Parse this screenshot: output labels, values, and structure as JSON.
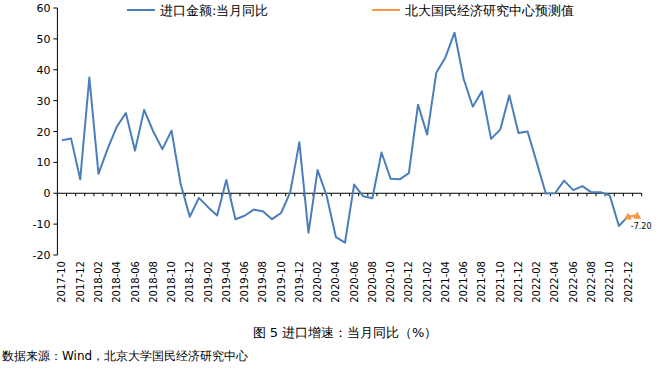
{
  "chart_data": {
    "type": "line",
    "title": "图 5 进口增速：当月同比（%）",
    "source": "数据来源：Wind，北京大学国民经济研究中心",
    "categories": [
      "2017-10",
      null,
      "2017-12",
      null,
      "2018-02",
      null,
      "2018-04",
      null,
      "2018-06",
      null,
      "2018-08",
      null,
      "2018-10",
      null,
      "2018-12",
      null,
      "2019-02",
      null,
      "2019-04",
      null,
      "2019-06",
      null,
      "2019-08",
      null,
      "2019-10",
      null,
      "2019-12",
      null,
      "2020-02",
      null,
      "2020-04",
      null,
      "2020-06",
      null,
      "2020-08",
      null,
      "2020-10",
      null,
      "2020-12",
      null,
      "2021-02",
      null,
      "2021-04",
      null,
      "2021-06",
      null,
      "2021-08",
      null,
      "2021-10",
      null,
      "2021-12",
      null,
      "2022-02",
      null,
      "2022-04",
      null,
      "2022-06",
      null,
      "2022-08",
      null,
      "2022-10",
      null,
      "2022-12",
      null
    ],
    "series": [
      {
        "name": "进口金额:当月同比",
        "color": "#4a7ebb",
        "values": [
          17.2,
          17.7,
          4.5,
          37.5,
          6.3,
          14.4,
          21.5,
          26.0,
          13.8,
          27.0,
          20.0,
          14.3,
          20.3,
          3.0,
          -7.6,
          -1.5,
          -4.5,
          -7.2,
          4.3,
          -8.4,
          -7.3,
          -5.3,
          -5.8,
          -8.4,
          -6.4,
          0.3,
          16.5,
          -12.8,
          7.5,
          -0.9,
          -14.2,
          -16.0,
          2.8,
          -1.0,
          -1.6,
          13.2,
          4.7,
          4.5,
          6.5,
          28.7,
          19.0,
          39.0,
          44.0,
          52.0,
          37.0,
          28.0,
          33.0,
          17.6,
          20.6,
          31.7,
          19.5,
          20.0,
          10.0,
          -0.1,
          0.0,
          4.1,
          1.0,
          2.3,
          0.3,
          0.3,
          -0.7,
          -10.6,
          -7.5,
          null
        ]
      },
      {
        "name": "北大国民经济研究中心预测值",
        "color": "#f79646",
        "marker": "triangle",
        "data_labels": true,
        "values": [
          null,
          null,
          null,
          null,
          null,
          null,
          null,
          null,
          null,
          null,
          null,
          null,
          null,
          null,
          null,
          null,
          null,
          null,
          null,
          null,
          null,
          null,
          null,
          null,
          null,
          null,
          null,
          null,
          null,
          null,
          null,
          null,
          null,
          null,
          null,
          null,
          null,
          null,
          null,
          null,
          null,
          null,
          null,
          null,
          null,
          null,
          null,
          null,
          null,
          null,
          null,
          null,
          null,
          null,
          null,
          null,
          null,
          null,
          null,
          null,
          null,
          null,
          -7.5,
          -7.2
        ],
        "value_labels": [
          null,
          null,
          null,
          null,
          null,
          null,
          null,
          null,
          null,
          null,
          null,
          null,
          null,
          null,
          null,
          null,
          null,
          null,
          null,
          null,
          null,
          null,
          null,
          null,
          null,
          null,
          null,
          null,
          null,
          null,
          null,
          null,
          null,
          null,
          null,
          null,
          null,
          null,
          null,
          null,
          null,
          null,
          null,
          null,
          null,
          null,
          null,
          null,
          null,
          null,
          null,
          null,
          null,
          null,
          null,
          null,
          null,
          null,
          null,
          null,
          null,
          null,
          null,
          "-7.20"
        ]
      }
    ],
    "ylim": [
      -20,
      60
    ],
    "yticks": [
      -20,
      -10,
      0,
      10,
      20,
      30,
      40,
      50,
      60
    ],
    "grid": false,
    "legend": "top"
  }
}
